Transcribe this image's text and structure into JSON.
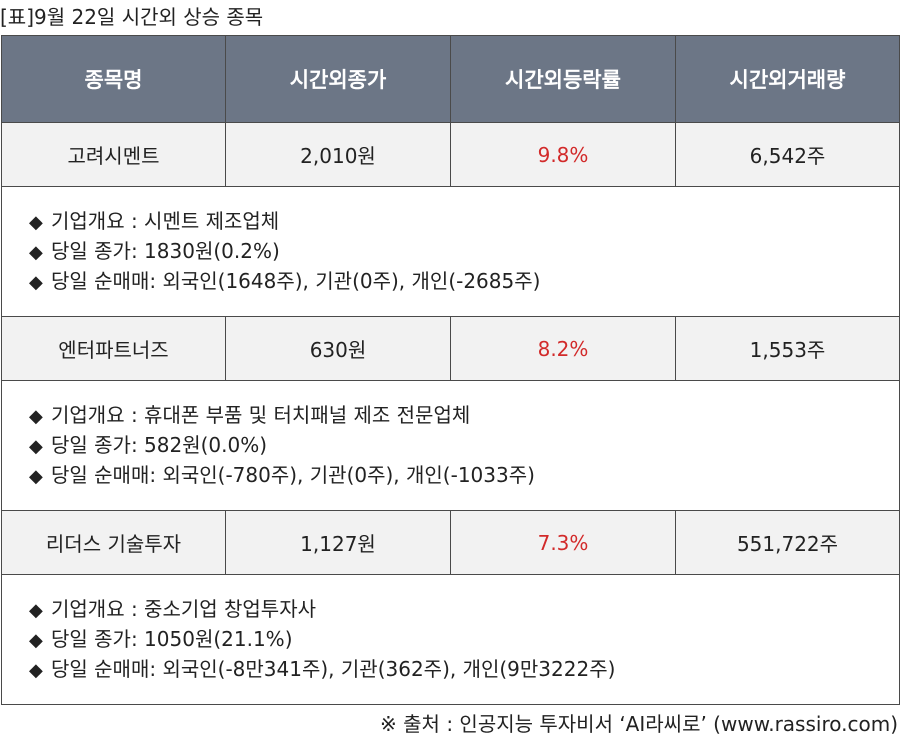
{
  "caption": "[표]9월 22일 시간외 상승 종목",
  "headers": [
    "종목명",
    "시간외종가",
    "시간외등락률",
    "시간외거래량"
  ],
  "bullet_icon": "black-diamond",
  "colors": {
    "header_bg": "#6c7686",
    "rate_text": "#d22a2a",
    "stock_row_bg": "#f2f2f2"
  },
  "stocks": [
    {
      "name": "고려시멘트",
      "close": "2,010원",
      "rate": "9.8%",
      "volume": "6,542주",
      "details": [
        "기업개요 : 시멘트 제조업체",
        "당일 종가: 1830원(0.2%)",
        "당일 순매매: 외국인(1648주), 기관(0주), 개인(-2685주)"
      ]
    },
    {
      "name": "엔터파트너즈",
      "close": "630원",
      "rate": "8.2%",
      "volume": "1,553주",
      "details": [
        "기업개요 : 휴대폰 부품 및 터치패널 제조 전문업체",
        "당일 종가: 582원(0.0%)",
        "당일 순매매: 외국인(-780주), 기관(0주), 개인(-1033주)"
      ]
    },
    {
      "name": "리더스 기술투자",
      "close": "1,127원",
      "rate": "7.3%",
      "volume": "551,722주",
      "details": [
        "기업개요 : 중소기업 창업투자사",
        "당일 종가: 1050원(21.1%)",
        "당일 순매매: 외국인(-8만341주), 기관(362주), 개인(9만3222주)"
      ]
    }
  ],
  "source": "※ 출처 : 인공지능 투자비서 ‘AI라씨로’ (www.rassiro.com)"
}
